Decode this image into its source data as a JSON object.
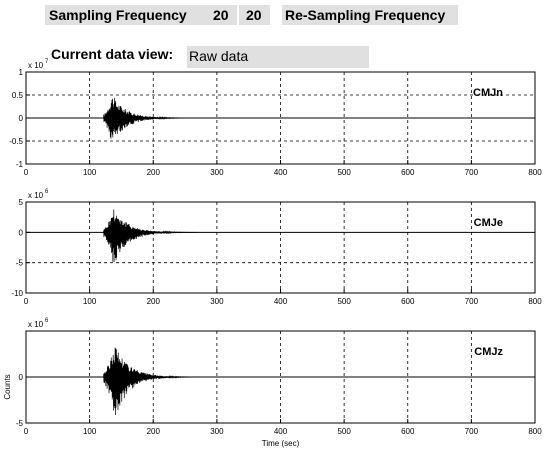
{
  "header": {
    "sampling_label": "Sampling Frequency",
    "sampling_value": "20",
    "sampling_value_2": "20",
    "resampling_label": "Re-Sampling Frequency",
    "current_view_label": "Current data view:",
    "current_view_value": "Raw data"
  },
  "chart_data": [
    {
      "type": "line",
      "station": "CMJn",
      "exponent": "7",
      "xlim": [
        0,
        800
      ],
      "ylim": [
        -1,
        1
      ],
      "xticks": [
        0,
        100,
        200,
        300,
        400,
        500,
        600,
        700,
        800
      ],
      "yticks": [
        1,
        0.5,
        0,
        -0.5,
        -1
      ],
      "ytick_labels": [
        "1",
        "0.5",
        "0",
        "-0.5",
        "-1"
      ],
      "ylabel": "",
      "xlabel": "",
      "grid": "dashed",
      "waveform": {
        "onset": 122,
        "peak_time": 135,
        "peak_up": 0.52,
        "peak_down": -0.58,
        "coda_end": 260,
        "color": "#000000"
      }
    },
    {
      "type": "line",
      "station": "CMJe",
      "exponent": "6",
      "xlim": [
        0,
        800
      ],
      "ylim": [
        -10,
        5
      ],
      "xticks": [
        0,
        100,
        200,
        300,
        400,
        500,
        600,
        700,
        800
      ],
      "yticks": [
        5,
        0,
        -5,
        -10
      ],
      "ytick_labels": [
        "5",
        "0",
        "-5",
        "-10"
      ],
      "ylabel": "",
      "xlabel": "",
      "grid": "dashed",
      "waveform": {
        "onset": 122,
        "peak_time": 138,
        "peak_up": 4.2,
        "peak_down": -5.6,
        "coda_end": 270,
        "color": "#000000"
      }
    },
    {
      "type": "line",
      "station": "CMJz",
      "exponent": "6",
      "xlim": [
        0,
        800
      ],
      "ylim": [
        -5,
        5
      ],
      "xticks": [
        0,
        100,
        200,
        300,
        400,
        500,
        600,
        700,
        800
      ],
      "yticks": [
        0,
        -5
      ],
      "ytick_labels": [
        "0",
        "-5"
      ],
      "ylabel": "Counts",
      "xlabel": "Time (sec)",
      "grid": "dashed",
      "waveform": {
        "onset": 122,
        "peak_time": 140,
        "peak_up": 3.7,
        "peak_down": -4.6,
        "coda_end": 265,
        "color": "#000000"
      }
    }
  ]
}
